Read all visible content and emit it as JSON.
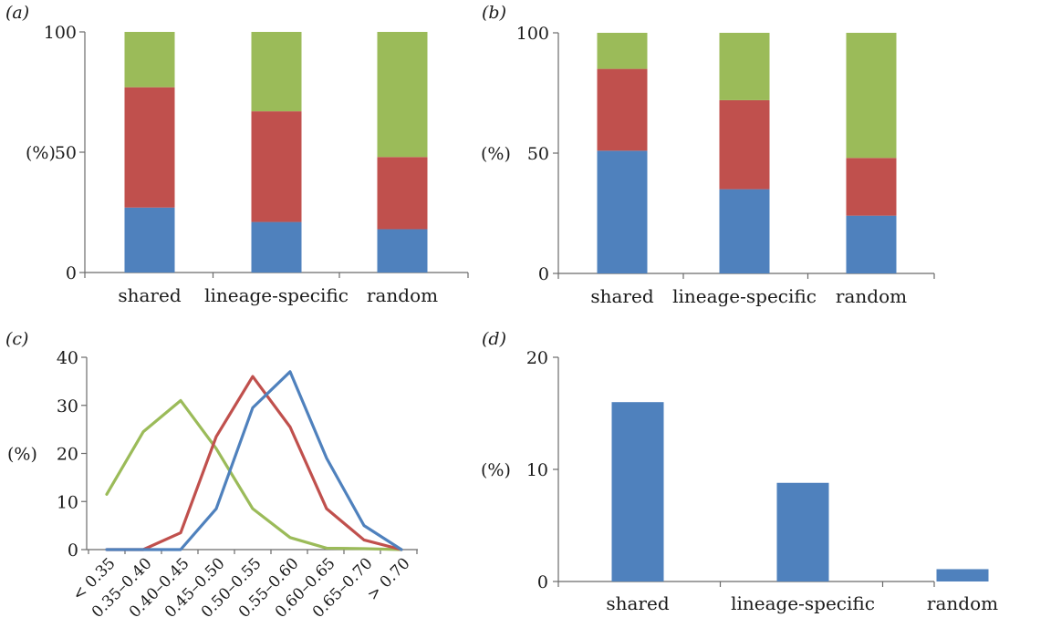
{
  "colors": {
    "blue": "#4f81bd",
    "red": "#c0504d",
    "green": "#9bbb59"
  },
  "chart_data": [
    {
      "panel": "(a)",
      "type": "bar",
      "stacked": true,
      "ylabel": "(%)",
      "ylim": [
        0,
        100
      ],
      "yticks": [
        "0",
        "50",
        "100"
      ],
      "categories": [
        "shared",
        "lineage-specific",
        "random"
      ],
      "series": [
        {
          "color": "#4f81bd",
          "values": [
            27,
            21,
            18
          ]
        },
        {
          "color": "#c0504d",
          "values": [
            50,
            46,
            30
          ]
        },
        {
          "color": "#9bbb59",
          "values": [
            23,
            33,
            52
          ]
        }
      ]
    },
    {
      "panel": "(b)",
      "type": "bar",
      "stacked": true,
      "ylabel": "(%)",
      "ylim": [
        0,
        100
      ],
      "yticks": [
        "0",
        "50",
        "100"
      ],
      "categories": [
        "shared",
        "lineage-specific",
        "random"
      ],
      "series": [
        {
          "color": "#4f81bd",
          "values": [
            51,
            35,
            24
          ]
        },
        {
          "color": "#c0504d",
          "values": [
            34,
            37,
            24
          ]
        },
        {
          "color": "#9bbb59",
          "values": [
            15,
            28,
            52
          ]
        }
      ]
    },
    {
      "panel": "(c)",
      "type": "line",
      "ylabel": "(%)",
      "ylim": [
        0,
        40
      ],
      "yticks": [
        "0",
        "10",
        "20",
        "30",
        "40"
      ],
      "categories": [
        "< 0.35",
        "0.35–0.40",
        "0.40–0.45",
        "0.45–0.50",
        "0.50–0.55",
        "0.55–0.60",
        "0.60–0.65",
        "0.65–0.70",
        "> 0.70"
      ],
      "series": [
        {
          "color": "#9bbb59",
          "values": [
            11.5,
            24.5,
            31,
            21,
            8.5,
            2.5,
            0.3,
            0.2,
            0
          ]
        },
        {
          "color": "#c0504d",
          "values": [
            0,
            0,
            3.5,
            23.5,
            36,
            25.5,
            8.5,
            2,
            0
          ]
        },
        {
          "color": "#4f81bd",
          "values": [
            0,
            0,
            0,
            8.5,
            29.5,
            37,
            19,
            5,
            0
          ]
        }
      ]
    },
    {
      "panel": "(d)",
      "type": "bar",
      "ylabel": "(%)",
      "ylim": [
        0,
        20
      ],
      "yticks": [
        "0",
        "10",
        "20"
      ],
      "categories": [
        "shared",
        "lineage-specific",
        "random"
      ],
      "series": [
        {
          "color": "#4f81bd",
          "values": [
            16,
            8.8,
            1.1
          ]
        }
      ]
    }
  ]
}
